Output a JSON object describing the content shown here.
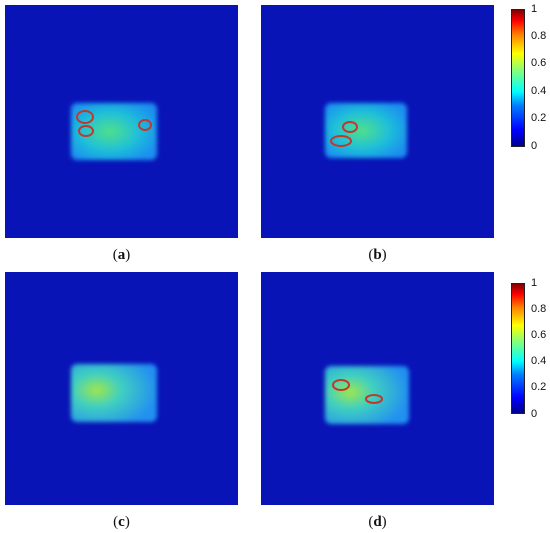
{
  "panels": [
    {
      "id": "a",
      "caption_label": "a",
      "circles_count": 3
    },
    {
      "id": "b",
      "caption_label": "b",
      "circles_count": 2
    },
    {
      "id": "c",
      "caption_label": "c",
      "circles_count": 0
    },
    {
      "id": "d",
      "caption_label": "d",
      "circles_count": 2
    }
  ],
  "colorbar": {
    "ticks": [
      "1",
      "0.8",
      "0.6",
      "0.4",
      "0.2",
      "0"
    ],
    "colormap": "jet",
    "range": [
      0,
      1
    ]
  },
  "colors": {
    "background": "#0a0fbf",
    "marker": "#c0392b"
  }
}
